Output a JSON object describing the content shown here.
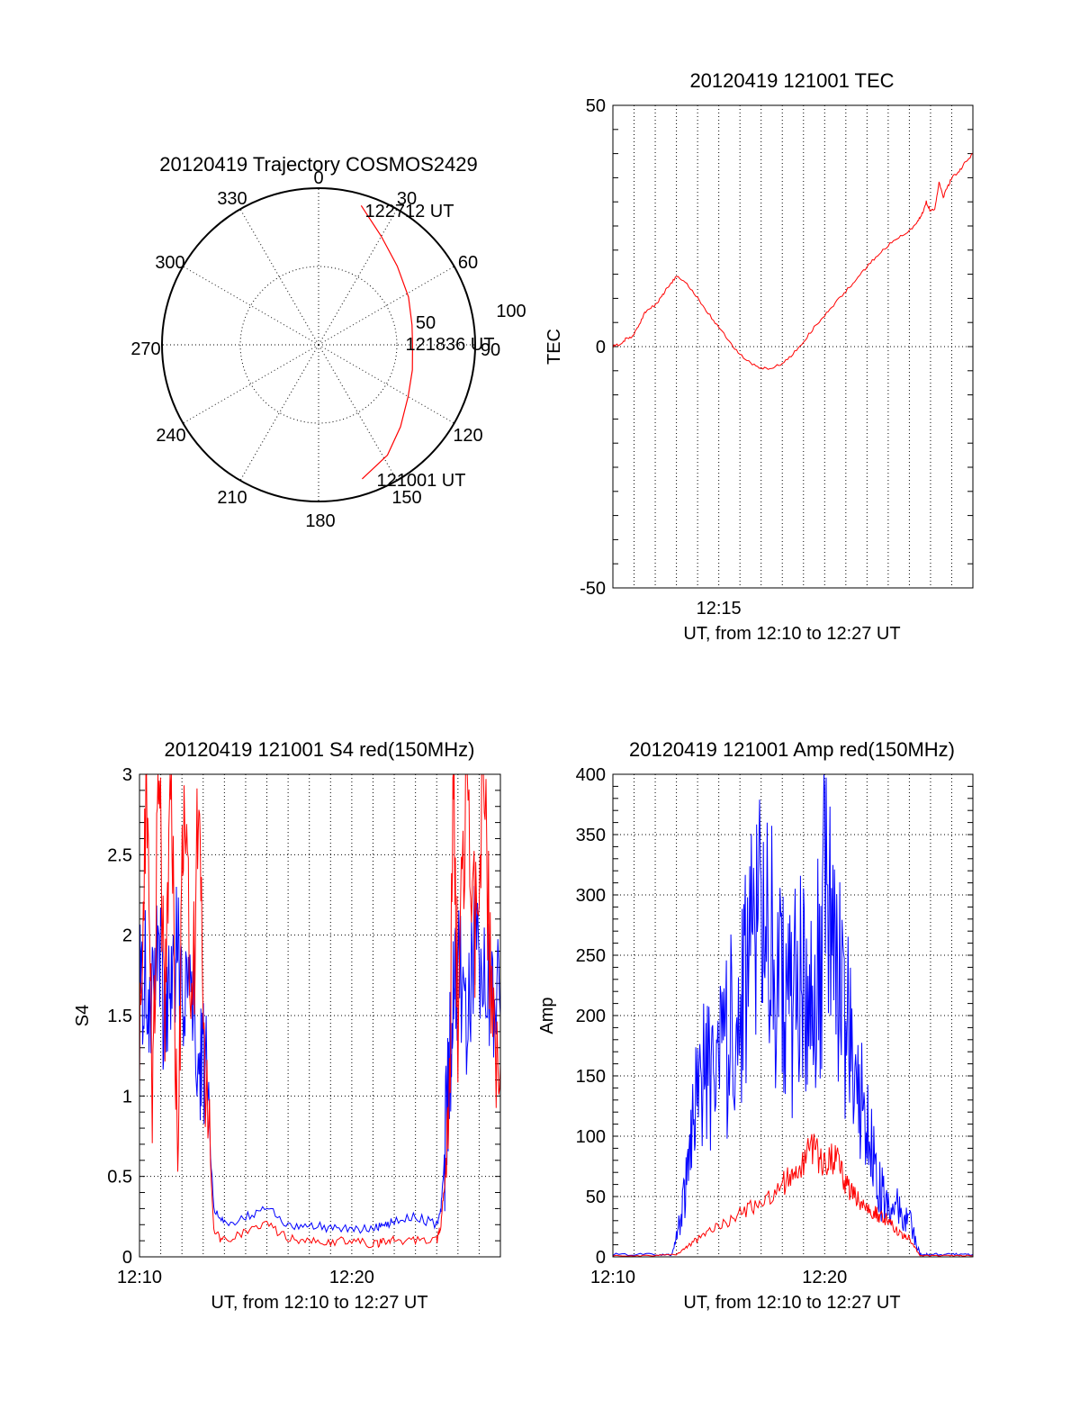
{
  "chart_data": [
    {
      "type": "polar",
      "title": "20120419 Trajectory COSMOS2429",
      "angle_labels": [
        "0",
        "30",
        "60",
        "90",
        "120",
        "150",
        "180",
        "210",
        "240",
        "270",
        "300",
        "330"
      ],
      "radial_ticks": [
        50,
        100
      ],
      "radial_tick_labels": [
        "50",
        "100"
      ],
      "rmax": 100,
      "grid": true,
      "series": [
        {
          "color": "#ff0000",
          "points": [
            {
              "az": 17,
              "r": 93
            },
            {
              "az": 30,
              "r": 80
            },
            {
              "az": 45,
              "r": 71
            },
            {
              "az": 62,
              "r": 65
            },
            {
              "az": 78,
              "r": 61
            },
            {
              "az": 90,
              "r": 60
            },
            {
              "az": 105,
              "r": 62
            },
            {
              "az": 120,
              "r": 66
            },
            {
              "az": 135,
              "r": 74
            },
            {
              "az": 148,
              "r": 83
            },
            {
              "az": 162,
              "r": 90
            }
          ]
        }
      ],
      "annotations": [
        {
          "text": "122712 UT",
          "at": "end"
        },
        {
          "text": "121836 UT",
          "at": "middle"
        },
        {
          "text": "121001 UT",
          "at": "start"
        }
      ]
    },
    {
      "type": "line",
      "title": "20120419 121001 TEC",
      "xlabel": "UT, from 12:10 to 12:27 UT",
      "ylabel": "TEC",
      "x_unit": "minutes after 12:10",
      "xlim": [
        0,
        17
      ],
      "ylim": [
        -50,
        50
      ],
      "xticks": [
        {
          "value": 5,
          "label": "12:15"
        }
      ],
      "yticks": [
        {
          "value": -50,
          "label": "-50"
        },
        {
          "value": 0,
          "label": "0"
        },
        {
          "value": 50,
          "label": "50"
        }
      ],
      "grid": "vertical",
      "series": [
        {
          "color": "#ff0000",
          "x": [
            0,
            0.3,
            0.6,
            0.9,
            1.2,
            1.5,
            1.8,
            2.1,
            2.4,
            2.7,
            3.0,
            3.5,
            4.0,
            4.5,
            5.0,
            5.5,
            6.0,
            6.5,
            7.0,
            7.5,
            8.0,
            8.5,
            9.0,
            9.5,
            10.0,
            10.5,
            11.0,
            11.5,
            12.0,
            12.5,
            13.0,
            13.5,
            14.0,
            14.4,
            14.6,
            14.8,
            15.0,
            15.2,
            15.4,
            15.6,
            15.8,
            16.0,
            16.3,
            16.6,
            17.0
          ],
          "y": [
            0,
            0.5,
            1.5,
            2,
            4,
            7,
            8,
            9,
            11,
            13,
            14.5,
            13,
            10,
            7,
            4,
            1,
            -1.5,
            -3.5,
            -4.5,
            -4.5,
            -3.5,
            -1.5,
            1,
            4,
            6.5,
            9,
            11.5,
            14,
            16.5,
            19,
            21,
            22.5,
            24,
            26,
            27.5,
            30,
            28,
            28.5,
            34,
            31,
            33,
            35,
            36,
            38,
            40
          ]
        }
      ]
    },
    {
      "type": "line",
      "title": "20120419 121001 S4 red(150MHz)",
      "xlabel": "UT, from 12:10 to 12:27 UT",
      "ylabel": "S4",
      "x_unit": "minutes after 12:10",
      "xlim": [
        0,
        17
      ],
      "ylim": [
        0,
        3
      ],
      "xticks": [
        {
          "value": 0,
          "label": "12:10"
        },
        {
          "value": 10,
          "label": "12:20"
        }
      ],
      "yticks": [
        {
          "value": 0,
          "label": "0"
        },
        {
          "value": 0.5,
          "label": "0.5"
        },
        {
          "value": 1,
          "label": "1"
        },
        {
          "value": 1.5,
          "label": "1.5"
        },
        {
          "value": 2,
          "label": "2"
        },
        {
          "value": 2.5,
          "label": "2.5"
        },
        {
          "value": 3,
          "label": "3"
        }
      ],
      "grid": true,
      "series": [
        {
          "color": "#0000ff",
          "x": [
            0,
            0.3,
            0.6,
            0.9,
            1.2,
            1.5,
            1.8,
            2.1,
            2.5,
            2.8,
            3.1,
            3.5,
            4.0,
            5.0,
            6.0,
            7.0,
            8.0,
            9.0,
            10.0,
            11.0,
            11.5,
            12.0,
            13.0,
            14.0,
            14.2,
            14.4,
            14.6,
            14.8,
            15.0,
            15.4,
            15.8,
            16.2,
            16.6,
            17.0
          ],
          "y": [
            1.6,
            1.8,
            1.5,
            2.0,
            1.4,
            1.7,
            1.9,
            1.5,
            1.6,
            1.3,
            1.2,
            0.3,
            0.2,
            0.25,
            0.3,
            0.2,
            0.2,
            0.18,
            0.17,
            0.17,
            0.2,
            0.22,
            0.25,
            0.2,
            0.3,
            0.7,
            1.2,
            1.6,
            1.8,
            1.5,
            2.0,
            1.6,
            1.7,
            1.5
          ]
        },
        {
          "color": "#ff0000",
          "x": [
            0,
            0.3,
            0.6,
            0.9,
            1.2,
            1.5,
            1.8,
            2.1,
            2.5,
            2.8,
            3.1,
            3.5,
            4.0,
            5.0,
            6.0,
            7.0,
            8.0,
            9.0,
            10.0,
            11.0,
            11.5,
            12.0,
            13.0,
            14.0,
            14.2,
            14.4,
            14.6,
            14.8,
            15.0,
            15.4,
            15.8,
            16.2,
            16.6,
            17.0
          ],
          "y": [
            1.3,
            3.0,
            1.0,
            3.0,
            1.5,
            3.0,
            0.5,
            3.0,
            1.5,
            3.0,
            1.2,
            0.15,
            0.1,
            0.15,
            0.2,
            0.12,
            0.1,
            0.1,
            0.1,
            0.08,
            0.1,
            0.1,
            0.1,
            0.1,
            0.2,
            0.5,
            1.0,
            3.0,
            1.5,
            3.0,
            2.0,
            3.0,
            1.5,
            1.2
          ]
        }
      ]
    },
    {
      "type": "line",
      "title": "20120419 121001 Amp red(150MHz)",
      "xlabel": "UT, from 12:10 to 12:27 UT",
      "ylabel": "Amp",
      "x_unit": "minutes after 12:10",
      "xlim": [
        0,
        17
      ],
      "ylim": [
        0,
        400
      ],
      "xticks": [
        {
          "value": 0,
          "label": "12:10"
        },
        {
          "value": 10,
          "label": "12:20"
        }
      ],
      "yticks": [
        {
          "value": 0,
          "label": "0"
        },
        {
          "value": 50,
          "label": "50"
        },
        {
          "value": 100,
          "label": "100"
        },
        {
          "value": 150,
          "label": "150"
        },
        {
          "value": 200,
          "label": "200"
        },
        {
          "value": 250,
          "label": "250"
        },
        {
          "value": 300,
          "label": "300"
        },
        {
          "value": 350,
          "label": "350"
        },
        {
          "value": 400,
          "label": "400"
        }
      ],
      "grid": true,
      "series": [
        {
          "color": "#0000ff",
          "x": [
            0,
            2.0,
            2.8,
            3.2,
            3.6,
            4.0,
            4.5,
            5.0,
            5.5,
            6.0,
            6.5,
            7.0,
            7.5,
            8.0,
            8.5,
            9.0,
            9.5,
            10.0,
            10.5,
            11.0,
            11.5,
            12.0,
            12.5,
            13.0,
            13.5,
            14.0,
            14.5,
            15.0,
            16.0,
            17.0
          ],
          "y": [
            2,
            2,
            2,
            30,
            80,
            140,
            150,
            160,
            180,
            220,
            250,
            280,
            250,
            220,
            200,
            260,
            200,
            310,
            230,
            200,
            150,
            110,
            60,
            40,
            40,
            30,
            2,
            2,
            2,
            2
          ]
        },
        {
          "color": "#ff0000",
          "x": [
            0,
            2.0,
            3.0,
            3.5,
            4.0,
            5.0,
            6.0,
            7.0,
            8.0,
            8.5,
            9.0,
            9.5,
            10.0,
            10.5,
            11.0,
            11.5,
            12.0,
            12.5,
            13.0,
            13.5,
            14.0,
            14.5,
            15.0,
            16.0,
            17.0
          ],
          "y": [
            1,
            1,
            2,
            8,
            15,
            25,
            35,
            45,
            60,
            70,
            80,
            90,
            75,
            85,
            60,
            50,
            40,
            35,
            30,
            20,
            15,
            1,
            1,
            1,
            1
          ]
        }
      ]
    }
  ]
}
